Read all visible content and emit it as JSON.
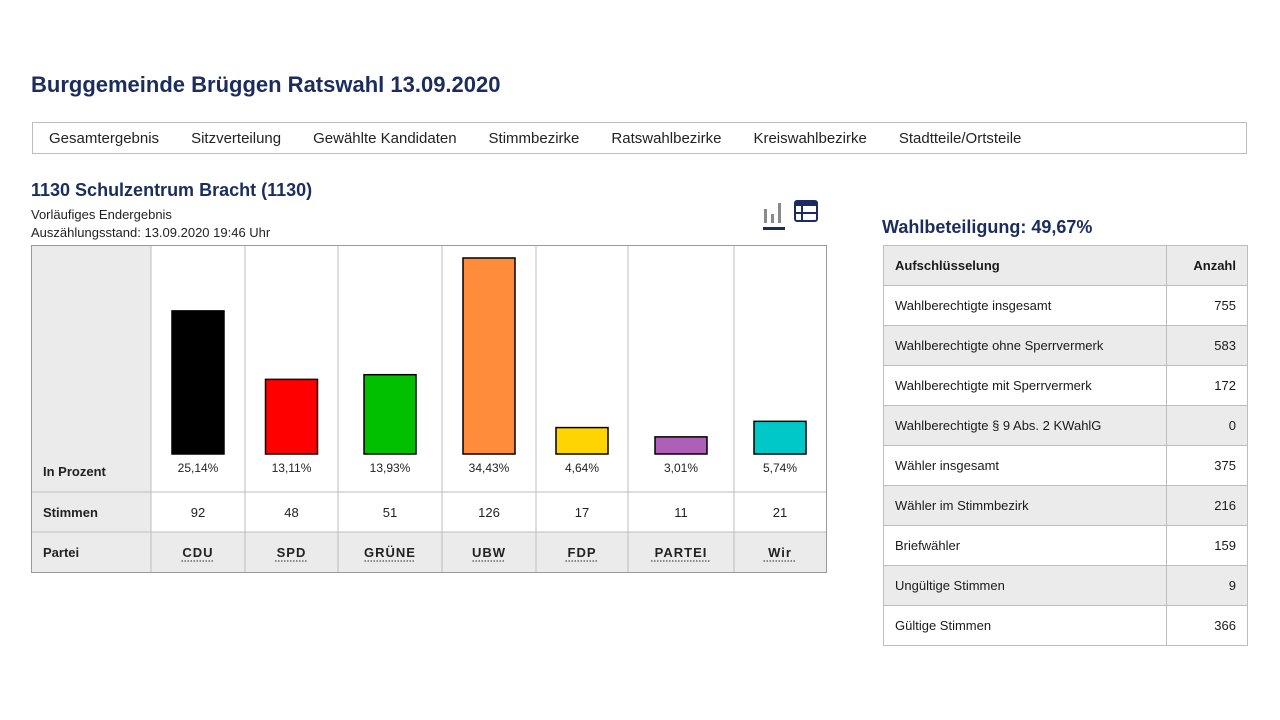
{
  "header": {
    "title": "Burggemeinde Brüggen Ratswahl 13.09.2020"
  },
  "nav": {
    "items": [
      "Gesamtergebnis",
      "Sitzverteilung",
      "Gewählte Kandidaten",
      "Stimmbezirke",
      "Ratswahlbezirke",
      "Kreiswahlbezirke",
      "Stadtteile/Ortsteile"
    ]
  },
  "district": {
    "title": "1130 Schulzentrum Bracht (1130)",
    "status": "Vorläufiges Endergebnis",
    "count_status": "Auszählungsstand: 13.09.2020 19:46 Uhr"
  },
  "view_icons": [
    "bar-chart-icon",
    "table-icon"
  ],
  "chart_data": {
    "type": "bar",
    "categories": [
      "CDU",
      "SPD",
      "GRÜNE",
      "UBW",
      "FDP",
      "PARTEI",
      "Wir"
    ],
    "values": [
      25.14,
      13.11,
      13.93,
      34.43,
      4.64,
      3.01,
      5.74
    ],
    "value_labels": [
      "25,14%",
      "13,11%",
      "13,93%",
      "34,43%",
      "4,64%",
      "3,01%",
      "5,74%"
    ],
    "votes": [
      "92",
      "48",
      "51",
      "126",
      "17",
      "11",
      "21"
    ],
    "colors": [
      "#000000",
      "#ff0000",
      "#00c000",
      "#ff8c3a",
      "#ffd400",
      "#b05fb8",
      "#00c8c8"
    ],
    "row_labels": {
      "percent": "In Prozent",
      "votes": "Stimmen",
      "party": "Partei"
    },
    "ylim": [
      0,
      34.43
    ]
  },
  "turnout": {
    "title": "Wahlbeteiligung: 49,67%"
  },
  "breakdown": {
    "header": {
      "label": "Aufschlüsselung",
      "count": "Anzahl"
    },
    "rows": [
      {
        "label": "Wahlberechtigte insgesamt",
        "count": "755"
      },
      {
        "label": "Wahlberechtigte ohne Sperrvermerk",
        "count": "583"
      },
      {
        "label": "Wahlberechtigte mit Sperrvermerk",
        "count": "172"
      },
      {
        "label": "Wahlberechtigte § 9 Abs. 2 KWahlG",
        "count": "0"
      },
      {
        "label": "Wähler insgesamt",
        "count": "375"
      },
      {
        "label": "Wähler im Stimmbezirk",
        "count": "216"
      },
      {
        "label": "Briefwähler",
        "count": "159"
      },
      {
        "label": "Ungültige Stimmen",
        "count": "9"
      },
      {
        "label": "Gültige Stimmen",
        "count": "366"
      }
    ]
  }
}
